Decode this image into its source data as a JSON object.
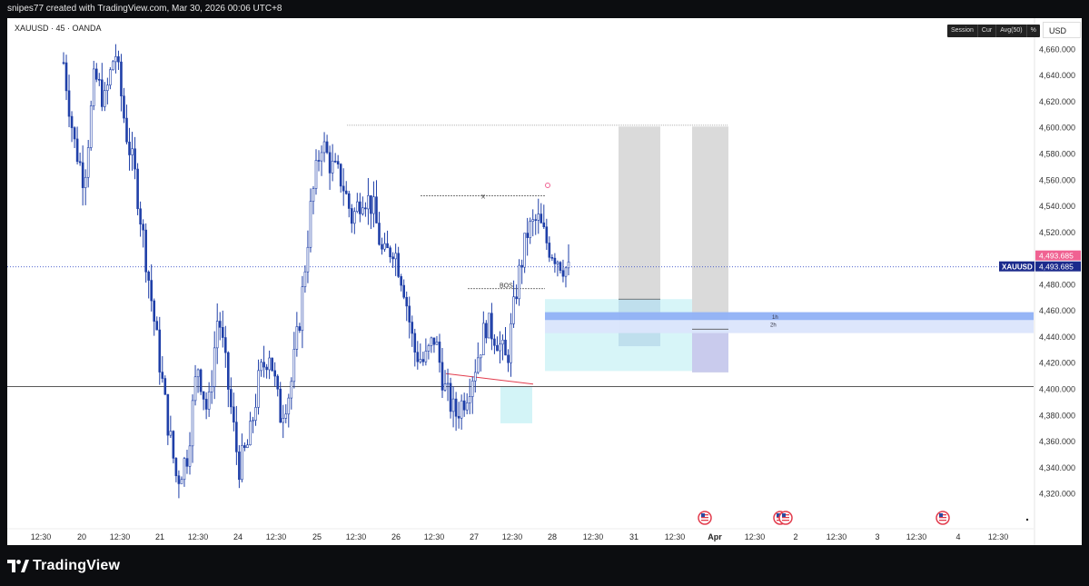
{
  "header": {
    "attribution": "snipes77 created with TradingView.com, Mar 30, 2026 00:06 UTC+8"
  },
  "symbol": {
    "label": "XAUUSD · 45 · OANDA"
  },
  "toolbar": {
    "items": [
      "Session",
      "Cur",
      "Avg(50)",
      "%"
    ]
  },
  "currency": "USD",
  "price_axis": {
    "ticks": [
      "4,660.000",
      "4,640.000",
      "4,620.000",
      "4,600.000",
      "4,580.000",
      "4,560.000",
      "4,540.000",
      "4,520.000",
      "4,480.000",
      "4,460.000",
      "4,440.000",
      "4,420.000",
      "4,400.000",
      "4,380.000",
      "4,360.000",
      "4,340.000",
      "4,320.000"
    ],
    "last_price": "4,493.685",
    "prev_price": "4,493.685",
    "symbol_tag": "XAUUSD"
  },
  "time_axis": {
    "ticks": [
      "12:30",
      "20",
      "12:30",
      "21",
      "12:30",
      "24",
      "12:30",
      "25",
      "12:30",
      "26",
      "12:30",
      "27",
      "12:30",
      "28",
      "12:30",
      "31",
      "12:30",
      "Apr",
      "12:30",
      "2",
      "12:30",
      "3",
      "12:30",
      "4",
      "12:30"
    ]
  },
  "annotations": {
    "x_marker": "x",
    "bos": "BOS",
    "tf_1h": "1h",
    "tf_2h": "2h"
  },
  "footer": {
    "brand": "TradingView"
  },
  "colors": {
    "candle": "#1f3fa8",
    "accent_pink": "#f06292",
    "zone_blue": "#5b8df0",
    "zone_cyan": "#b6ecf2",
    "grey": "#d0d0d0"
  },
  "chart_data": {
    "type": "candlestick",
    "symbol": "XAUUSD",
    "interval": "45",
    "ylim": [
      4310,
      4670
    ],
    "close_path": [
      4650,
      4590,
      4560,
      4640,
      4620,
      4660,
      4600,
      4560,
      4500,
      4440,
      4380,
      4330,
      4350,
      4420,
      4380,
      4460,
      4400,
      4340,
      4360,
      4410,
      4430,
      4380,
      4400,
      4460,
      4540,
      4590,
      4570,
      4560,
      4530,
      4550,
      4540,
      4500,
      4510,
      4480,
      4430,
      4420,
      4440,
      4400,
      4380,
      4395,
      4420,
      4450,
      4440,
      4420,
      4480,
      4520,
      4530,
      4510,
      4500,
      4490
    ],
    "horizontal_lines": [
      4600,
      4548,
      4402,
      4493.685
    ],
    "last_price": 4493.685
  }
}
